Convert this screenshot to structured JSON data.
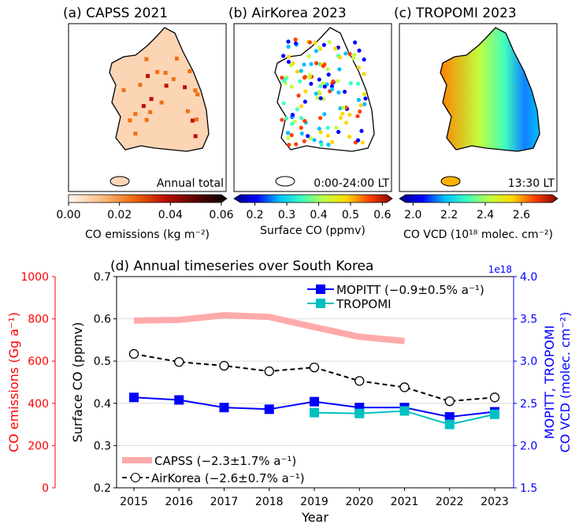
{
  "maps": [
    {
      "title": "(a) CAPSS 2021",
      "corner_label": "Annual total",
      "colorbar_ticks": [
        "0.00",
        "0.02",
        "0.04",
        "0.06"
      ],
      "colorbar_label": "CO emissions (kg m⁻²)",
      "colormap": [
        "#fff8f0",
        "#fdc08a",
        "#f07010",
        "#c01000",
        "#600000",
        "#000000"
      ],
      "fill": "#fcd5b5"
    },
    {
      "title": "(b) AirKorea 2023",
      "corner_label": "0:00-24:00 LT",
      "colorbar_ticks": [
        "0.2",
        "0.3",
        "0.4",
        "0.5",
        "0.6"
      ],
      "colorbar_label": "Surface CO (ppmv)",
      "colormap": [
        "#00007f",
        "#0000ff",
        "#00bfff",
        "#40ffbf",
        "#c0ff40",
        "#ffd700",
        "#ff4000",
        "#7f0000"
      ],
      "fill": "#ffffff"
    },
    {
      "title": "(c) TROPOMI 2023",
      "corner_label": "13:30 LT",
      "colorbar_ticks": [
        "2.0",
        "2.2",
        "2.4",
        "2.6"
      ],
      "colorbar_label": "CO VCD (10¹⁸ molec. cm⁻²)",
      "colormap": [
        "#00007f",
        "#0000ff",
        "#00bfff",
        "#40ffbf",
        "#c0ff40",
        "#ffd700",
        "#ff4000",
        "#7f0000"
      ],
      "fill": "#ffb000"
    }
  ],
  "chart_data": {
    "type": "line",
    "title": "(d) Annual timeseries over South Korea",
    "xlabel": "Year",
    "x": [
      2015,
      2016,
      2017,
      2018,
      2019,
      2020,
      2021,
      2022,
      2023
    ],
    "ylabel_left": "Surface CO (ppmv)",
    "ylim_left": [
      0.2,
      0.7
    ],
    "yticks_left": [
      "0.2",
      "0.3",
      "0.4",
      "0.5",
      "0.6",
      "0.7"
    ],
    "ylabel_far_left": "CO emissions (Gg a⁻¹)",
    "ylim_far_left": [
      0,
      1000
    ],
    "yticks_far_left": [
      "0",
      "200",
      "400",
      "600",
      "800",
      "1000"
    ],
    "ylabel_right": "MOPITT, TROPOMI\nCO VCD (molec. cm⁻²)",
    "ylabel_right_lines": [
      "MOPITT, TROPOMI",
      "CO VCD (molec. cm⁻²)"
    ],
    "ylim_right": [
      1.5,
      4.0
    ],
    "yticks_right": [
      "1.5",
      "2.0",
      "2.5",
      "3.0",
      "3.5",
      "4.0"
    ],
    "right_offset_label": "1e18",
    "grid": true,
    "series": [
      {
        "name": "CAPSS (−2.3±1.7% a⁻¹)",
        "axis": "far_left",
        "color": "#ffaaaa",
        "x": [
          2015,
          2016,
          2017,
          2018,
          2019,
          2020,
          2021
        ],
        "values": [
          792,
          795,
          817,
          809,
          761,
          715,
          695
        ]
      },
      {
        "name": "AirKorea (−2.6±0.7% a⁻¹)",
        "axis": "left",
        "color": "#000000",
        "x": [
          2015,
          2016,
          2017,
          2018,
          2019,
          2020,
          2021,
          2022,
          2023
        ],
        "values": [
          0.517,
          0.498,
          0.489,
          0.476,
          0.485,
          0.453,
          0.438,
          0.405,
          0.414
        ]
      },
      {
        "name": "MOPITT (−0.9±0.5% a⁻¹)",
        "axis": "right",
        "color": "#0000ff",
        "x": [
          2015,
          2016,
          2017,
          2018,
          2019,
          2020,
          2021,
          2022,
          2023
        ],
        "values": [
          2.57,
          2.54,
          2.45,
          2.43,
          2.52,
          2.45,
          2.45,
          2.34,
          2.4
        ]
      },
      {
        "name": "TROPOMI",
        "axis": "right",
        "color": "#00c0c0",
        "x": [
          2019,
          2020,
          2021,
          2022,
          2023
        ],
        "values": [
          2.39,
          2.38,
          2.41,
          2.25,
          2.37
        ]
      }
    ],
    "legend_placement": [
      "top-right",
      "bottom-left"
    ]
  }
}
